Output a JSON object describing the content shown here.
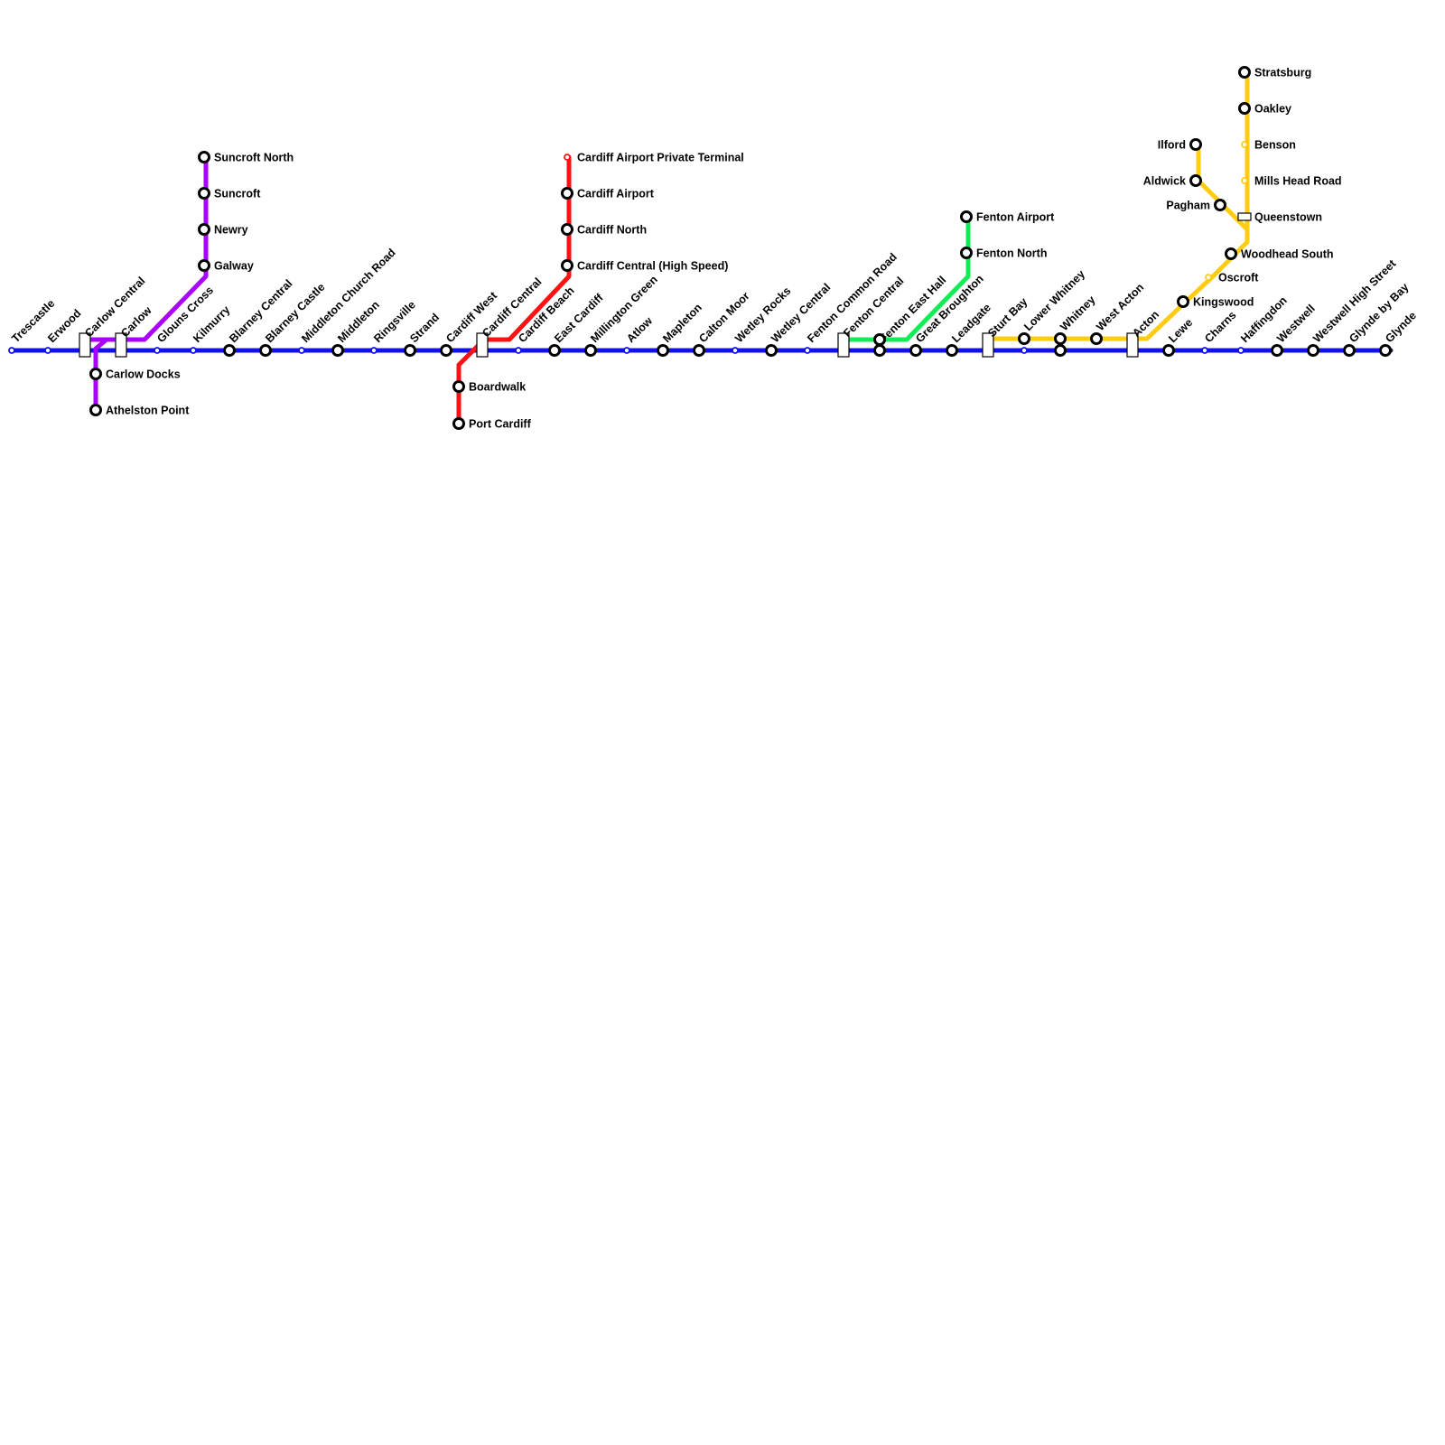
{
  "colors": {
    "blue": "#1010ee",
    "purple": "#aa00ff",
    "red": "#ff1111",
    "green": "#11ee55",
    "yellow": "#ffcc11",
    "station_outline": "#000000",
    "background": "#ffffff"
  },
  "lines": [
    {
      "id": "blue",
      "color": "#1010ee",
      "path": "trescastle,erwood,carlow-central,carlow,glouns-cross,kilmurry,blarney-central,blarney-castle,middleton-church-road,middleton,ringsville,strand,cardiff-west,cardiff-central,cardiff-beach,east-cardiff,millington-green,atlow,mapleton,calton-moor,wetley-rocks,wetley-central,fenton-common-road,fenton-central,fenton-east-hall,great-broughton,leadgate,sturt-bay,lower-whitney,whitney,west-acton,acton,lewe,charns,haffingdon,westwell,westwell-high-street,glynde-by-bay,glynde"
    },
    {
      "id": "purple",
      "color": "#aa00ff",
      "path": "athelston-point,carlow-docks,carlow-central,carlow,galway,newry,suncroft,suncroft-north"
    },
    {
      "id": "red",
      "color": "#ff1111",
      "path": "port-cardiff,boardwalk,cardiff-west,cardiff-central,cardiff-central-high-speed,cardiff-north,cardiff-airport,cardiff-airport-private-terminal"
    },
    {
      "id": "green",
      "color": "#11ee55",
      "path": "fenton-central,fenton-east-hall,fenton-north,fenton-airport"
    },
    {
      "id": "yellow",
      "color": "#ffcc11",
      "path": "sturt-bay,lower-whitney,whitney,west-acton,acton,kingswood,oscroft,woodhead-south,queenstown,mills-head-road,benson,oakley,stratsburg; pagham,aldwick,ilford"
    }
  ],
  "stations": [
    {
      "id": "trescastle",
      "name": "Trescastle",
      "type": "minor"
    },
    {
      "id": "erwood",
      "name": "Erwood",
      "type": "minor"
    },
    {
      "id": "carlow-central",
      "name": "Carlow Central",
      "type": "interchange"
    },
    {
      "id": "carlow",
      "name": "Carlow",
      "type": "interchange"
    },
    {
      "id": "glouns-cross",
      "name": "Glouns Cross",
      "type": "minor"
    },
    {
      "id": "kilmurry",
      "name": "Kilmurry",
      "type": "minor"
    },
    {
      "id": "blarney-central",
      "name": "Blarney Central",
      "type": "major"
    },
    {
      "id": "blarney-castle",
      "name": "Blarney Castle",
      "type": "major"
    },
    {
      "id": "middleton-church-road",
      "name": "Middleton Church Road",
      "type": "minor"
    },
    {
      "id": "middleton",
      "name": "Middleton",
      "type": "major"
    },
    {
      "id": "ringsville",
      "name": "Ringsville",
      "type": "minor"
    },
    {
      "id": "strand",
      "name": "Strand",
      "type": "major"
    },
    {
      "id": "cardiff-west",
      "name": "Cardiff West",
      "type": "major"
    },
    {
      "id": "cardiff-central",
      "name": "Cardiff Central",
      "type": "interchange"
    },
    {
      "id": "cardiff-beach",
      "name": "Cardiff Beach",
      "type": "minor"
    },
    {
      "id": "east-cardiff",
      "name": "East Cardiff",
      "type": "major"
    },
    {
      "id": "millington-green",
      "name": "Millington Green",
      "type": "major"
    },
    {
      "id": "atlow",
      "name": "Atlow",
      "type": "minor"
    },
    {
      "id": "mapleton",
      "name": "Mapleton",
      "type": "major"
    },
    {
      "id": "calton-moor",
      "name": "Calton Moor",
      "type": "major"
    },
    {
      "id": "wetley-rocks",
      "name": "Wetley Rocks",
      "type": "minor"
    },
    {
      "id": "wetley-central",
      "name": "Wetley Central",
      "type": "major"
    },
    {
      "id": "fenton-common-road",
      "name": "Fenton Common Road",
      "type": "minor"
    },
    {
      "id": "fenton-central",
      "name": "Fenton Central",
      "type": "interchange"
    },
    {
      "id": "fenton-east-hall",
      "name": "Fenton East Hall",
      "type": "major"
    },
    {
      "id": "fenton-east-hall-green",
      "name": "",
      "type": "major"
    },
    {
      "id": "great-broughton",
      "name": "Great Broughton",
      "type": "major"
    },
    {
      "id": "leadgate",
      "name": "Leadgate",
      "type": "major"
    },
    {
      "id": "sturt-bay",
      "name": "Sturt Bay",
      "type": "interchange"
    },
    {
      "id": "lower-whitney",
      "name": "Lower Whitney",
      "type": "major"
    },
    {
      "id": "lower-whitney-blue",
      "name": "",
      "type": "minor"
    },
    {
      "id": "whitney",
      "name": "Whitney",
      "type": "major"
    },
    {
      "id": "whitney-blue",
      "name": "",
      "type": "major"
    },
    {
      "id": "west-acton",
      "name": "West Acton",
      "type": "major"
    },
    {
      "id": "acton",
      "name": "Acton",
      "type": "interchange"
    },
    {
      "id": "lewe",
      "name": "Lewe",
      "type": "major"
    },
    {
      "id": "charns",
      "name": "Charns",
      "type": "minor"
    },
    {
      "id": "haffingdon",
      "name": "Haffingdon",
      "type": "minor"
    },
    {
      "id": "westwell",
      "name": "Westwell",
      "type": "major"
    },
    {
      "id": "westwell-high-street",
      "name": "Westwell High Street",
      "type": "major"
    },
    {
      "id": "glynde-by-bay",
      "name": "Glynde by Bay",
      "type": "major"
    },
    {
      "id": "glynde",
      "name": "Glynde",
      "type": "major"
    },
    {
      "id": "carlow-docks",
      "name": "Carlow Docks",
      "type": "major"
    },
    {
      "id": "athelston-point",
      "name": "Athelston Point",
      "type": "major"
    },
    {
      "id": "galway",
      "name": "Galway",
      "type": "major"
    },
    {
      "id": "newry",
      "name": "Newry",
      "type": "major"
    },
    {
      "id": "suncroft",
      "name": "Suncroft",
      "type": "major"
    },
    {
      "id": "suncroft-north",
      "name": "Suncroft North",
      "type": "major"
    },
    {
      "id": "cardiff-central-high-speed",
      "name": "Cardiff Central (High Speed)",
      "type": "major"
    },
    {
      "id": "cardiff-north",
      "name": "Cardiff North",
      "type": "major"
    },
    {
      "id": "cardiff-airport",
      "name": "Cardiff Airport",
      "type": "major"
    },
    {
      "id": "cardiff-airport-private-terminal",
      "name": "Cardiff Airport Private Terminal",
      "type": "minor"
    },
    {
      "id": "boardwalk",
      "name": "Boardwalk",
      "type": "major"
    },
    {
      "id": "port-cardiff",
      "name": "Port Cardiff",
      "type": "major"
    },
    {
      "id": "fenton-north",
      "name": "Fenton North",
      "type": "major"
    },
    {
      "id": "fenton-airport",
      "name": "Fenton Airport",
      "type": "major"
    },
    {
      "id": "kingswood",
      "name": "Kingswood",
      "type": "major"
    },
    {
      "id": "oscroft",
      "name": "Oscroft",
      "type": "minor"
    },
    {
      "id": "woodhead-south",
      "name": "Woodhead South",
      "type": "major"
    },
    {
      "id": "pagham",
      "name": "Pagham",
      "type": "major"
    },
    {
      "id": "aldwick",
      "name": "Aldwick",
      "type": "major"
    },
    {
      "id": "ilford",
      "name": "Ilford",
      "type": "major"
    },
    {
      "id": "queenstown",
      "name": "Queenstown",
      "type": "interchange"
    },
    {
      "id": "mills-head-road",
      "name": "Mills Head Road",
      "type": "minor"
    },
    {
      "id": "benson",
      "name": "Benson",
      "type": "minor"
    },
    {
      "id": "oakley",
      "name": "Oakley",
      "type": "major"
    },
    {
      "id": "stratsburg",
      "name": "Stratsburg",
      "type": "major"
    }
  ]
}
